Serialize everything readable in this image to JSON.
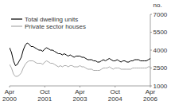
{
  "chart_data": {
    "type": "line",
    "ylabel": "no.",
    "categories": [
      "Apr\n2000",
      null,
      null,
      null,
      null,
      null,
      null,
      null,
      null,
      null,
      null,
      null,
      null,
      null,
      null,
      null,
      null,
      null,
      "Oct\n2001",
      null,
      null,
      null,
      null,
      null,
      null,
      null,
      null,
      null,
      null,
      null,
      null,
      null,
      null,
      null,
      null,
      null,
      "Apr\n2003",
      null,
      null,
      null,
      null,
      null,
      null,
      null,
      null,
      null,
      null,
      null,
      null,
      null,
      null,
      null,
      null,
      null,
      "Oct\n2004",
      null,
      null,
      null,
      null,
      null,
      null,
      null,
      null,
      null,
      null,
      null,
      null,
      null,
      null,
      null,
      null,
      null,
      "Apr\n2006"
    ],
    "series": [
      {
        "name": "Total dwelling units",
        "color": "#000000",
        "values": [
          4200,
          3800,
          3100,
          2700,
          2800,
          3100,
          3400,
          4000,
          4400,
          4600,
          4500,
          4300,
          4300,
          4200,
          4100,
          4000,
          4000,
          3900,
          4100,
          4200,
          4100,
          4000,
          4000,
          3900,
          3800,
          3700,
          3700,
          3600,
          3700,
          3600,
          3500,
          3600,
          3500,
          3400,
          3500,
          3500,
          3500,
          3400,
          3400,
          3300,
          3200,
          3200,
          3200,
          3100,
          3100,
          3000,
          3000,
          3100,
          3200,
          3100,
          3200,
          3300,
          3200,
          3100,
          3100,
          3200,
          3100,
          3000,
          3100,
          3100,
          3000,
          3000,
          3100,
          3100,
          3200,
          3200,
          3200,
          3100,
          3100,
          3100,
          3100,
          3200,
          3300
        ]
      },
      {
        "name": "Private sector houses",
        "color": "#aaaaaa",
        "values": [
          2800,
          2500,
          2000,
          1800,
          1800,
          1900,
          2100,
          2500,
          2800,
          3000,
          3100,
          3100,
          3100,
          3000,
          2900,
          2900,
          2900,
          2800,
          3000,
          3100,
          3000,
          2900,
          2900,
          2800,
          2700,
          2600,
          2700,
          2600,
          2700,
          2700,
          2600,
          2700,
          2700,
          2600,
          2600,
          2600,
          2700,
          2600,
          2600,
          2500,
          2400,
          2400,
          2400,
          2300,
          2300,
          2300,
          2300,
          2400,
          2500,
          2500,
          2500,
          2600,
          2500,
          2400,
          2500,
          2500,
          2500,
          2400,
          2400,
          2400,
          2400,
          2400,
          2400,
          2500,
          2500,
          2500,
          2500,
          2500,
          2500,
          2500,
          2500,
          2600,
          2600
        ]
      }
    ],
    "ylim": [
      1000,
      7000
    ],
    "yticks": [
      1000,
      2500,
      4000,
      5500,
      7000
    ],
    "grid": false,
    "legend": "top-left"
  }
}
